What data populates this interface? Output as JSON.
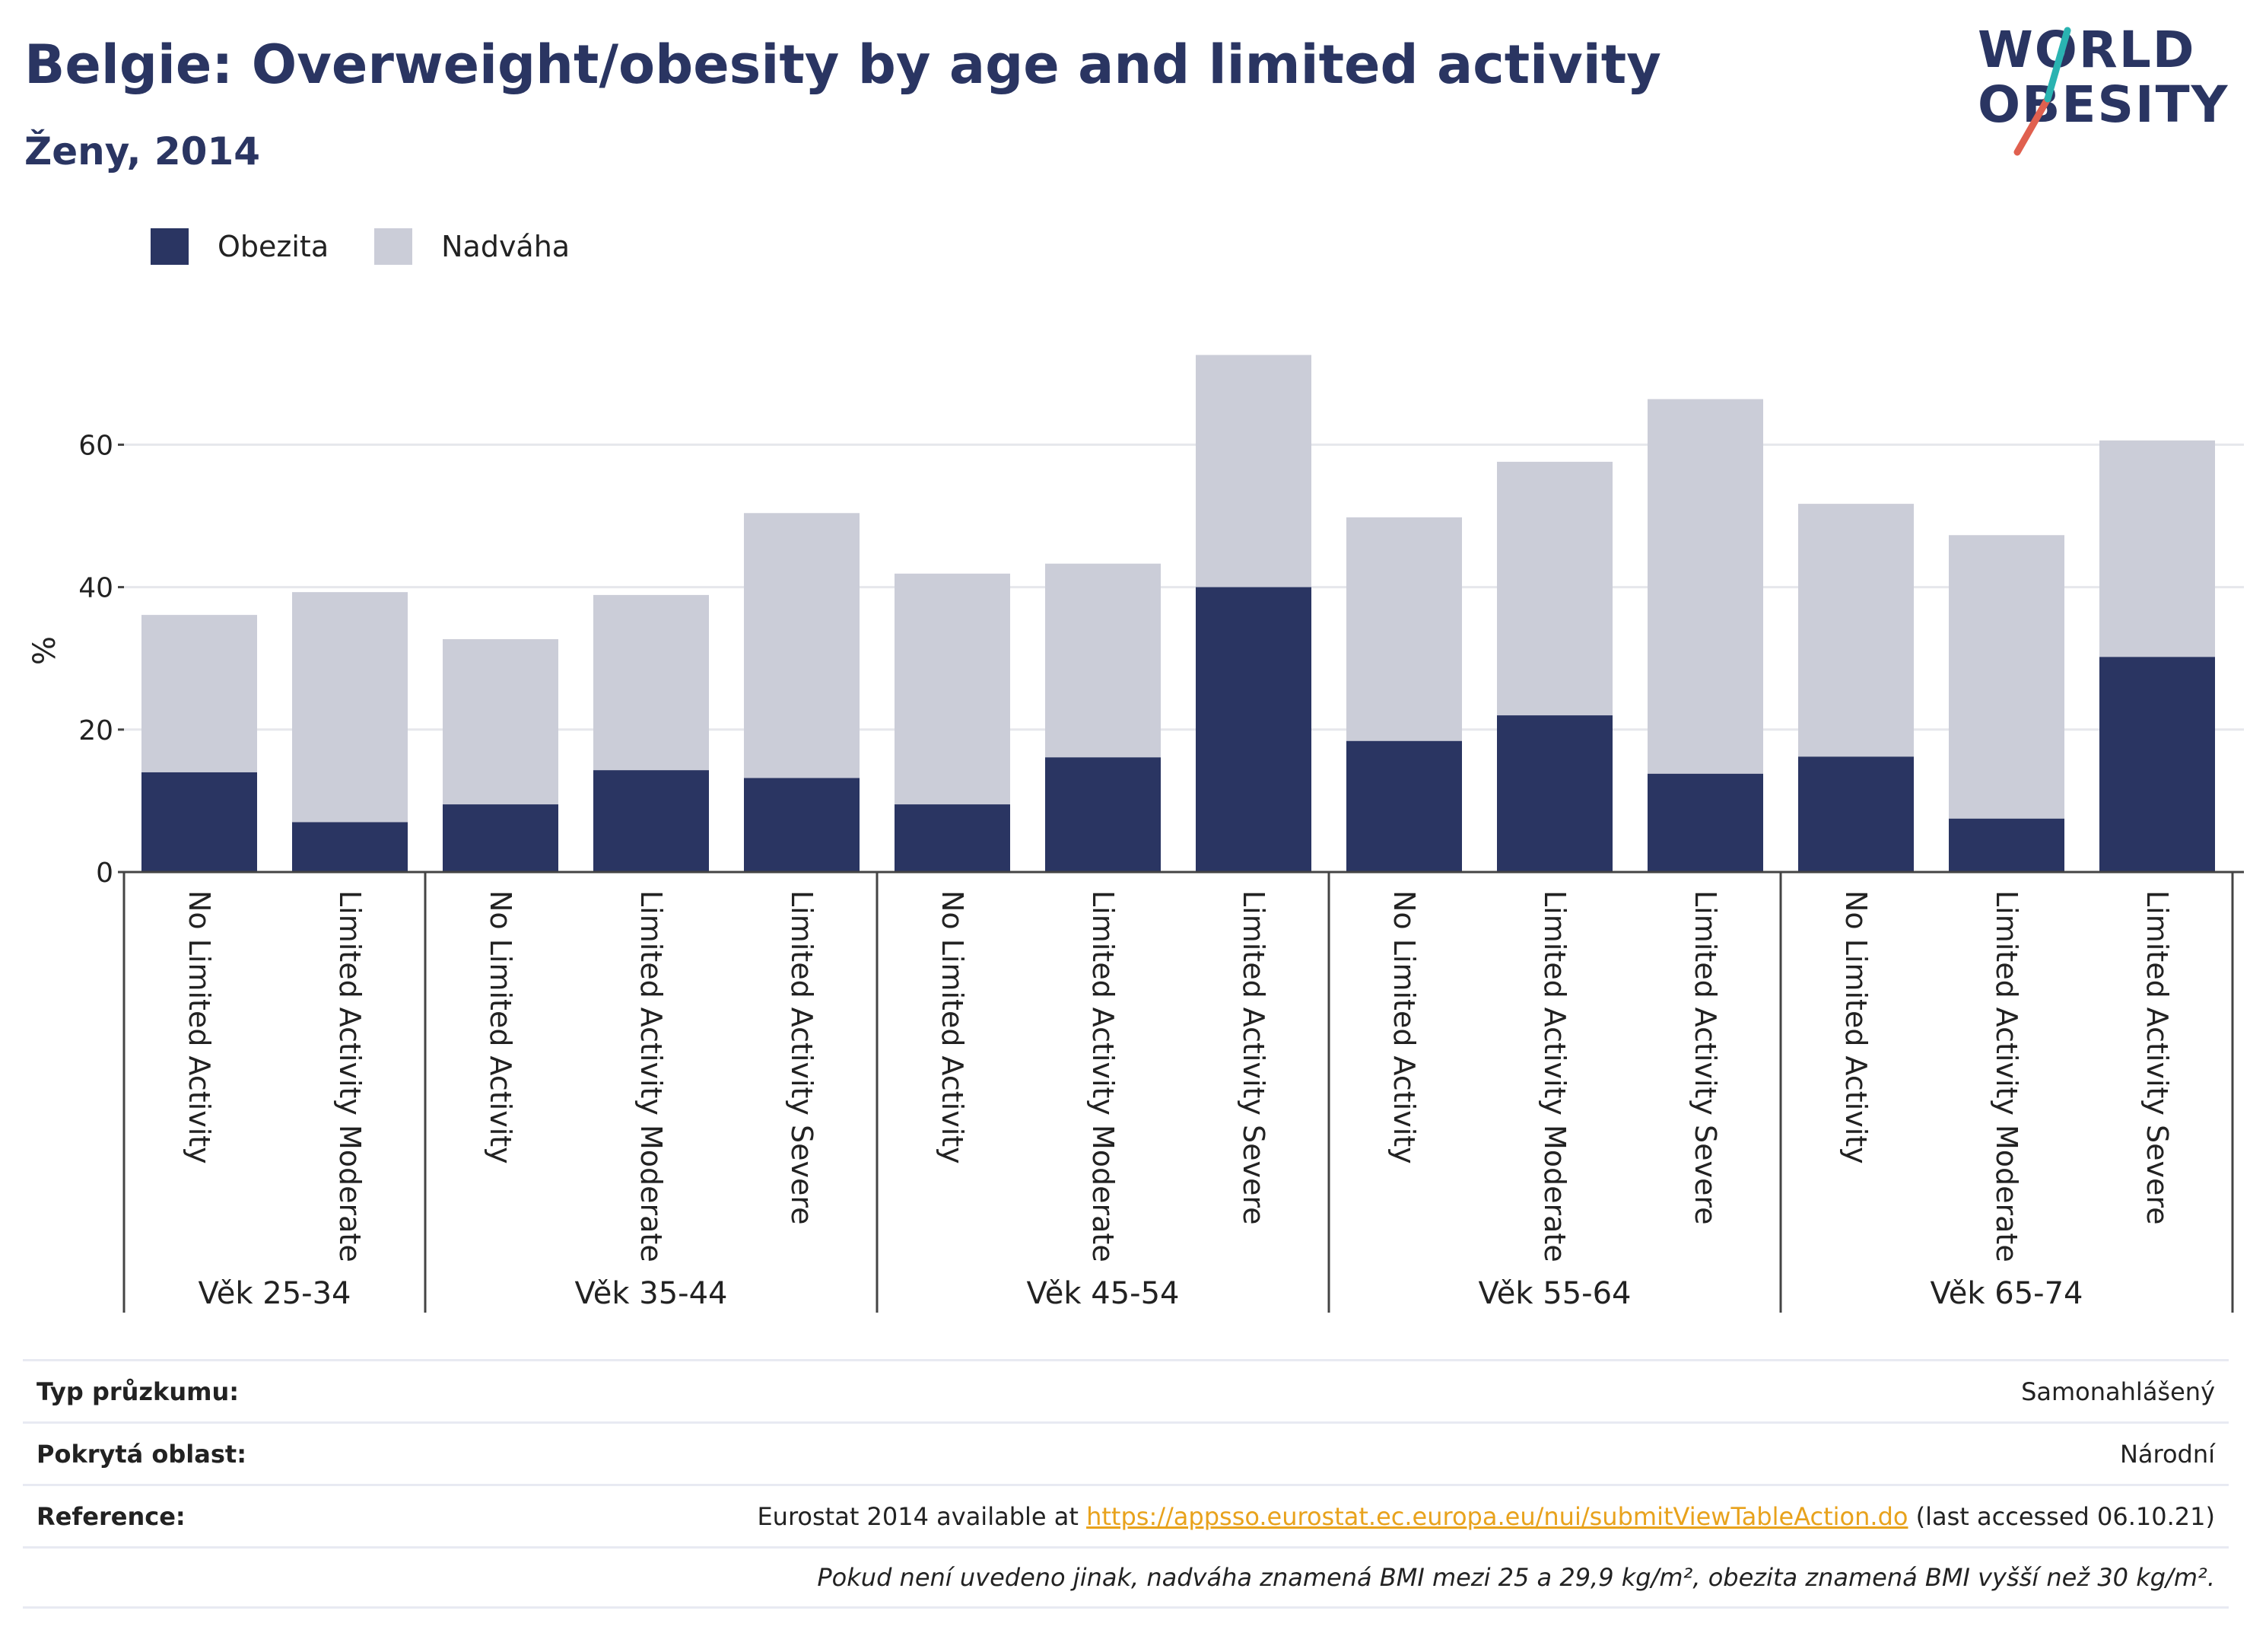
{
  "header": {
    "title": "Belgie: Overweight/obesity by age and limited activity",
    "subtitle": "Ženy, 2014"
  },
  "logo": {
    "line1": "WORLD",
    "line2": "OBESITY"
  },
  "colors": {
    "obesity": "#2a3562",
    "overweight": "#cbcdd8",
    "accent_teal": "#2ab3b1",
    "accent_red": "#e0604f",
    "link": "#e8a21c"
  },
  "legend": [
    {
      "label": "Obezita",
      "color": "#2a3562"
    },
    {
      "label": "Nadváha",
      "color": "#cbcdd8"
    }
  ],
  "chart_data": {
    "type": "bar",
    "stacked": true,
    "ylabel": "%",
    "ylim": [
      0,
      75
    ],
    "yticks": [
      0,
      20,
      40,
      60
    ],
    "grid": true,
    "legend_position": "top-left",
    "groups": [
      {
        "label": "Věk 25-34",
        "categories": [
          "No Limited Activity",
          "Limited Activity Moderate"
        ]
      },
      {
        "label": "Věk 35-44",
        "categories": [
          "No Limited Activity",
          "Limited Activity Moderate",
          "Limited Activity Severe"
        ]
      },
      {
        "label": "Věk 45-54",
        "categories": [
          "No Limited Activity",
          "Limited Activity Moderate",
          "Limited Activity Severe"
        ]
      },
      {
        "label": "Věk 55-64",
        "categories": [
          "No Limited Activity",
          "Limited Activity Moderate",
          "Limited Activity Severe"
        ]
      },
      {
        "label": "Věk 65-74",
        "categories": [
          "No Limited Activity",
          "Limited Activity Moderate",
          "Limited Activity Severe"
        ]
      }
    ],
    "series": [
      {
        "name": "Obezita",
        "values": [
          14.0,
          7.0,
          9.5,
          14.3,
          13.2,
          9.5,
          16.1,
          40.0,
          18.4,
          22.0,
          13.8,
          16.2,
          7.5,
          30.2
        ]
      },
      {
        "name": "Nadváha",
        "values": [
          22.1,
          32.3,
          23.2,
          24.6,
          37.2,
          32.4,
          27.2,
          32.6,
          31.4,
          35.6,
          52.6,
          35.5,
          39.8,
          30.4
        ]
      }
    ]
  },
  "info": {
    "survey_key": "Typ průzkumu:",
    "survey_val": "Samonahlášený",
    "area_key": "Pokrytá oblast:",
    "area_val": "Národní",
    "ref_key": "Reference:",
    "ref_prefix": "Eurostat 2014 available at ",
    "ref_link": "https://appsso.eurostat.ec.europa.eu/nui/submitViewTableAction.do",
    "ref_suffix": " (last accessed 06.10.21)",
    "note": "Pokud není uvedeno jinak, nadváha znamená BMI mezi 25 a 29,9 kg/m², obezita znamená BMI vyšší než 30 kg/m²."
  }
}
